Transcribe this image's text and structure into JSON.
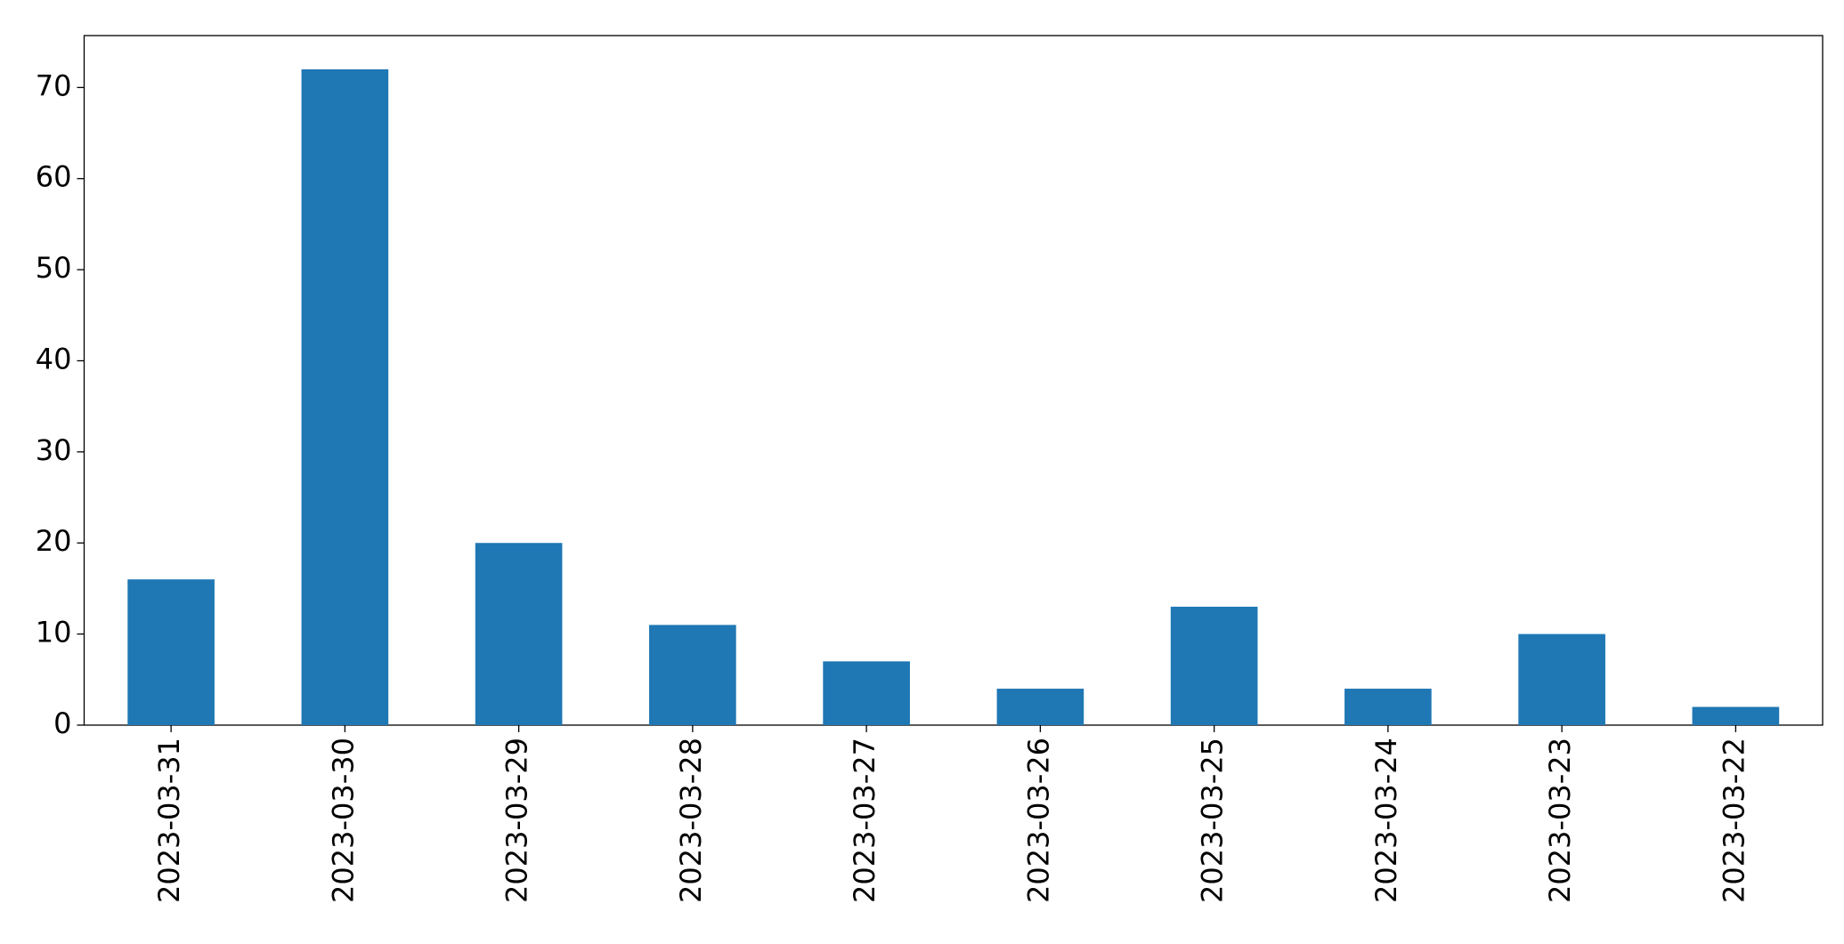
{
  "chart_data": {
    "type": "bar",
    "categories": [
      "2023-03-31",
      "2023-03-30",
      "2023-03-29",
      "2023-03-28",
      "2023-03-27",
      "2023-03-26",
      "2023-03-25",
      "2023-03-24",
      "2023-03-23",
      "2023-03-22"
    ],
    "values": [
      16,
      72,
      20,
      11,
      7,
      4,
      13,
      4,
      10,
      2
    ],
    "color": "#1f77b4",
    "ylim": [
      0,
      75.7
    ],
    "yticks": [
      0,
      10,
      20,
      30,
      40,
      50,
      60,
      70
    ],
    "grid": false
  }
}
